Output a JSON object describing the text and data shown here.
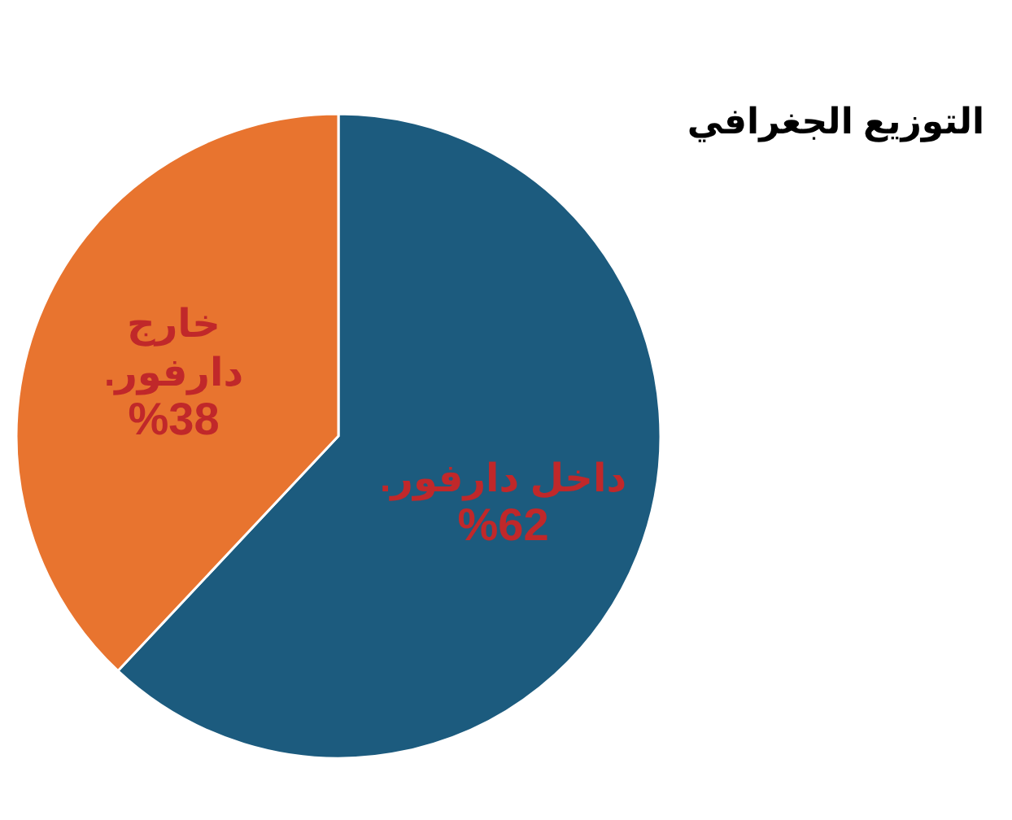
{
  "chart_data": {
    "type": "pie",
    "title": "التوزيع الجغرافي",
    "categories": [
      "داخل دارفور.",
      "خارج دارفور."
    ],
    "values": [
      62,
      38
    ],
    "colors": [
      "#1c5b7e",
      "#e8742f"
    ],
    "value_labels": [
      "%62",
      "%38"
    ]
  }
}
